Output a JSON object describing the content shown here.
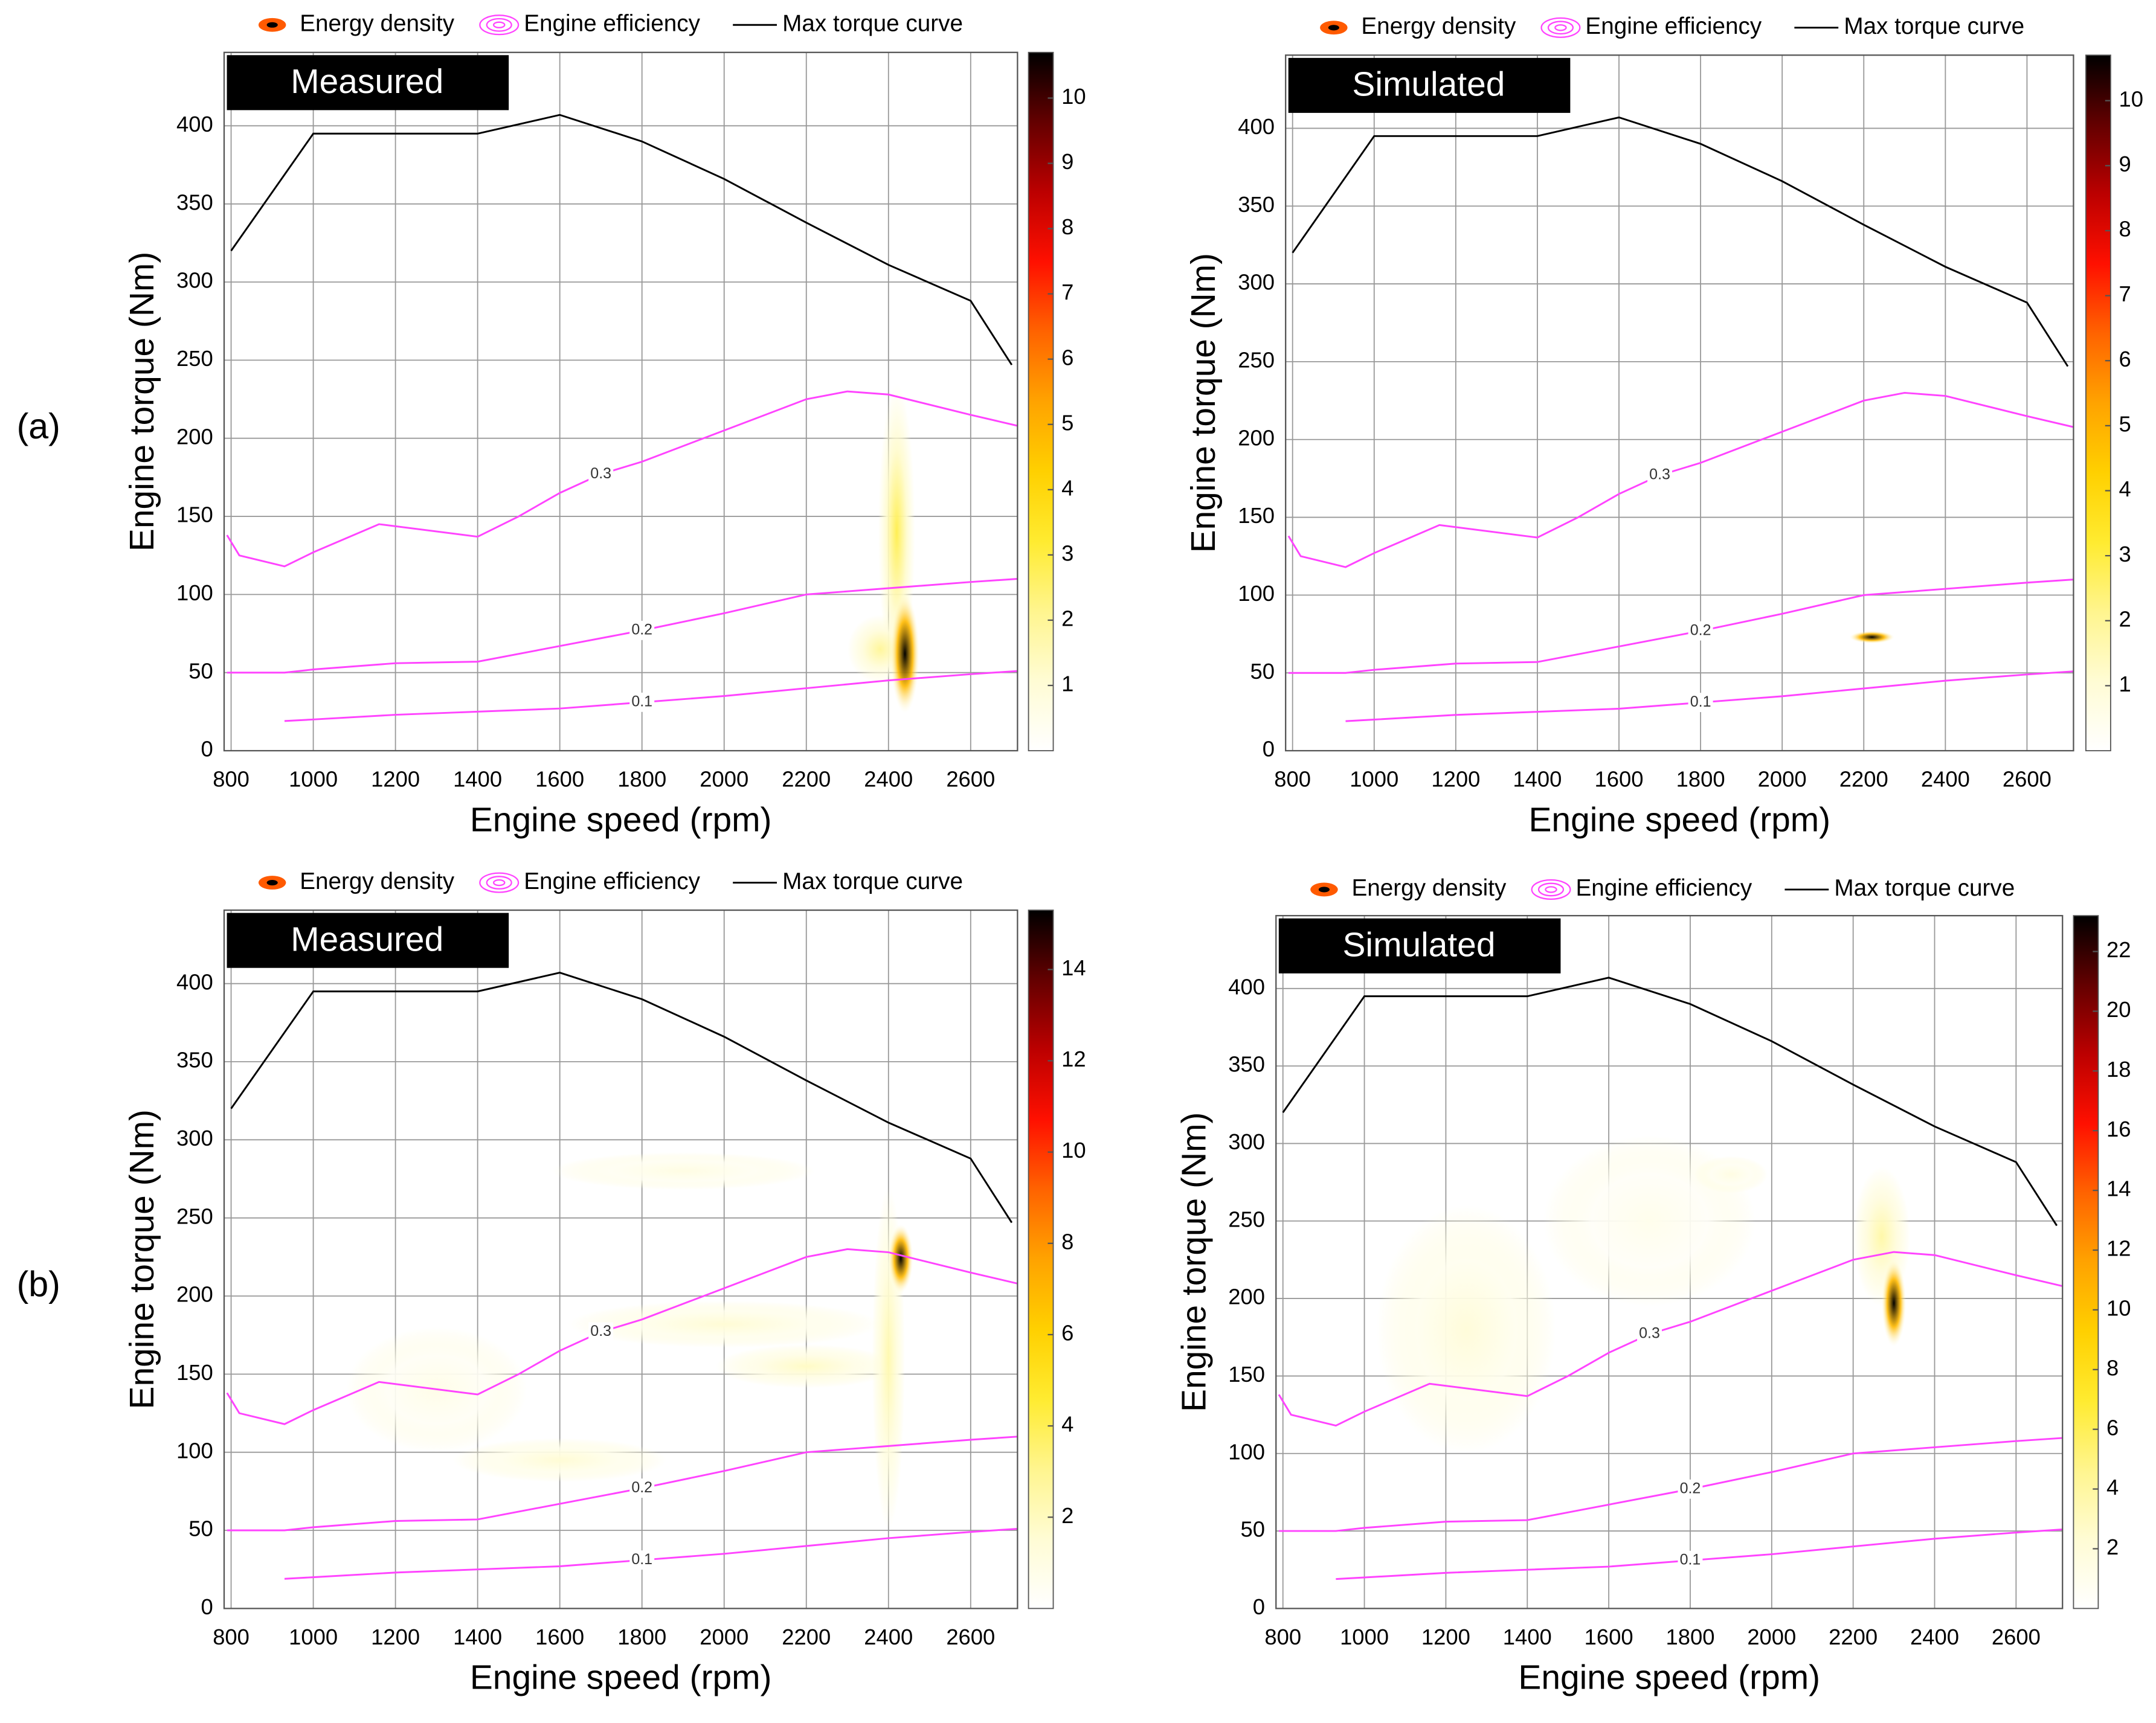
{
  "chart_data": [
    {
      "type": "contour",
      "panel": "(a)",
      "label": "Measured",
      "legend": [
        "Energy density",
        "Engine efficiency",
        "Max torque curve"
      ],
      "xlabel": "Engine speed (rpm)",
      "ylabel": "Engine torque (Nm)",
      "xlim": [
        783,
        2714
      ],
      "ylim": [
        0,
        447
      ],
      "xticks": [
        800,
        1000,
        1200,
        1400,
        1600,
        1800,
        2000,
        2200,
        2400,
        2600
      ],
      "yticks": [
        0,
        50,
        100,
        150,
        200,
        250,
        300,
        350,
        400
      ],
      "grid": true,
      "torque_color": "#000000",
      "efficiency_color": "#ff44ff",
      "max_torque": {
        "x": [
          800,
          1000,
          1200,
          1400,
          1600,
          1800,
          2000,
          2200,
          2400,
          2600,
          2700
        ],
        "y": [
          320,
          395,
          395,
          395,
          407,
          390,
          366,
          338,
          311,
          288,
          247
        ]
      },
      "efficiency": [
        {
          "level": 0.3,
          "x": [
            790,
            820,
            930,
            1000,
            1160,
            1400,
            1500,
            1600,
            1700,
            1800,
            2000,
            2200,
            2300,
            2400,
            2600,
            2714
          ],
          "y": [
            138,
            125,
            118,
            127,
            145,
            137,
            150,
            165,
            177,
            185,
            205,
            225,
            230,
            228,
            215,
            208
          ]
        },
        {
          "level": 0.2,
          "x": [
            790,
            930,
            1000,
            1200,
            1400,
            1600,
            1800,
            2000,
            2200,
            2400,
            2600,
            2714
          ],
          "y": [
            50,
            50,
            52,
            56,
            57,
            67,
            77,
            88,
            100,
            104,
            108,
            110
          ]
        },
        {
          "level": 0.1,
          "x": [
            930,
            1000,
            1200,
            1400,
            1600,
            1800,
            2000,
            2200,
            2400,
            2600,
            2714
          ],
          "y": [
            19,
            20,
            23,
            25,
            27,
            31,
            35,
            40,
            45,
            49,
            51
          ]
        }
      ],
      "energy_density": [
        {
          "x": 2420,
          "y": 140,
          "sx": 45,
          "sy": 95,
          "value": 2.8
        },
        {
          "x": 2380,
          "y": 65,
          "sx": 80,
          "sy": 22,
          "value": 2
        },
        {
          "x": 2440,
          "y": 62,
          "sx": 35,
          "sy": 38,
          "value": 10.7
        }
      ],
      "clim": [
        0,
        10.7
      ],
      "cticks": [
        1,
        2,
        3,
        4,
        5,
        6,
        7,
        8,
        9,
        10
      ]
    },
    {
      "type": "contour",
      "label": "Simulated",
      "legend": [
        "Energy density",
        "Engine efficiency",
        "Max torque curve"
      ],
      "xlabel": "Engine speed (rpm)",
      "ylabel": "Engine torque (Nm)",
      "xlim": [
        783,
        2714
      ],
      "ylim": [
        0,
        447
      ],
      "xticks": [
        800,
        1000,
        1200,
        1400,
        1600,
        1800,
        2000,
        2200,
        2400,
        2600
      ],
      "yticks": [
        0,
        50,
        100,
        150,
        200,
        250,
        300,
        350,
        400
      ],
      "grid": true,
      "torque_color": "#000000",
      "efficiency_color": "#ff44ff",
      "max_torque": {
        "x": [
          800,
          1000,
          1200,
          1400,
          1600,
          1800,
          2000,
          2200,
          2400,
          2600,
          2700
        ],
        "y": [
          320,
          395,
          395,
          395,
          407,
          390,
          366,
          338,
          311,
          288,
          247
        ]
      },
      "efficiency": [
        {
          "level": 0.3,
          "x": [
            790,
            820,
            930,
            1000,
            1160,
            1400,
            1500,
            1600,
            1700,
            1800,
            2000,
            2200,
            2300,
            2400,
            2600,
            2714
          ],
          "y": [
            138,
            125,
            118,
            127,
            145,
            137,
            150,
            165,
            177,
            185,
            205,
            225,
            230,
            228,
            215,
            208
          ]
        },
        {
          "level": 0.2,
          "x": [
            790,
            930,
            1000,
            1200,
            1400,
            1600,
            1800,
            2000,
            2200,
            2400,
            2600,
            2714
          ],
          "y": [
            50,
            50,
            52,
            56,
            57,
            67,
            77,
            88,
            100,
            104,
            108,
            110
          ]
        },
        {
          "level": 0.1,
          "x": [
            930,
            1000,
            1200,
            1400,
            1600,
            1800,
            2000,
            2200,
            2400,
            2600,
            2714
          ],
          "y": [
            19,
            20,
            23,
            25,
            27,
            31,
            35,
            40,
            45,
            49,
            51
          ]
        }
      ],
      "energy_density": [
        {
          "x": 2220,
          "y": 73,
          "sx": 55,
          "sy": 4,
          "value": 10.7
        }
      ],
      "clim": [
        0,
        10.7
      ],
      "cticks": [
        1,
        2,
        3,
        4,
        5,
        6,
        7,
        8,
        9,
        10
      ]
    },
    {
      "type": "contour",
      "panel": "(b)",
      "label": "Measured",
      "legend": [
        "Energy density",
        "Engine efficiency",
        "Max torque curve"
      ],
      "xlabel": "Engine speed (rpm)",
      "ylabel": "Engine torque (Nm)",
      "xlim": [
        783,
        2714
      ],
      "ylim": [
        0,
        447
      ],
      "xticks": [
        800,
        1000,
        1200,
        1400,
        1600,
        1800,
        2000,
        2200,
        2400,
        2600
      ],
      "yticks": [
        0,
        50,
        100,
        150,
        200,
        250,
        300,
        350,
        400
      ],
      "grid": true,
      "torque_color": "#000000",
      "efficiency_color": "#ff44ff",
      "max_torque": {
        "x": [
          800,
          1000,
          1200,
          1400,
          1600,
          1800,
          2000,
          2200,
          2400,
          2600,
          2700
        ],
        "y": [
          320,
          395,
          395,
          395,
          407,
          390,
          366,
          338,
          311,
          288,
          247
        ]
      },
      "efficiency": [
        {
          "level": 0.3,
          "x": [
            790,
            820,
            930,
            1000,
            1160,
            1400,
            1500,
            1600,
            1700,
            1800,
            2000,
            2200,
            2300,
            2400,
            2600,
            2714
          ],
          "y": [
            138,
            125,
            118,
            127,
            145,
            137,
            150,
            165,
            177,
            185,
            205,
            225,
            230,
            228,
            215,
            208
          ]
        },
        {
          "level": 0.2,
          "x": [
            790,
            930,
            1000,
            1200,
            1400,
            1600,
            1800,
            2000,
            2200,
            2400,
            2600,
            2714
          ],
          "y": [
            50,
            50,
            52,
            56,
            57,
            67,
            77,
            88,
            100,
            104,
            108,
            110
          ]
        },
        {
          "level": 0.1,
          "x": [
            930,
            1000,
            1200,
            1400,
            1600,
            1800,
            2000,
            2200,
            2400,
            2600,
            2714
          ],
          "y": [
            19,
            20,
            23,
            25,
            27,
            31,
            35,
            40,
            45,
            49,
            51
          ]
        }
      ],
      "energy_density": [
        {
          "x": 1300,
          "y": 140,
          "sx": 220,
          "sy": 40,
          "value": 0.8
        },
        {
          "x": 1900,
          "y": 280,
          "sx": 320,
          "sy": 12,
          "value": 1
        },
        {
          "x": 2000,
          "y": 182,
          "sx": 380,
          "sy": 15,
          "value": 1.5
        },
        {
          "x": 1600,
          "y": 95,
          "sx": 260,
          "sy": 14,
          "value": 1.5
        },
        {
          "x": 2200,
          "y": 155,
          "sx": 220,
          "sy": 14,
          "value": 2
        },
        {
          "x": 2400,
          "y": 160,
          "sx": 40,
          "sy": 110,
          "value": 2.5
        },
        {
          "x": 2430,
          "y": 224,
          "sx": 30,
          "sy": 22,
          "value": 15.3
        }
      ],
      "clim": [
        0,
        15.3
      ],
      "cticks": [
        2,
        4,
        6,
        8,
        10,
        12,
        14
      ]
    },
    {
      "type": "contour",
      "label": "Simulated",
      "legend": [
        "Energy density",
        "Engine efficiency",
        "Max torque curve"
      ],
      "xlabel": "Engine speed (rpm)",
      "ylabel": "Engine torque (Nm)",
      "xlim": [
        783,
        2714
      ],
      "ylim": [
        0,
        447
      ],
      "xticks": [
        800,
        1000,
        1200,
        1400,
        1600,
        1800,
        2000,
        2200,
        2400,
        2600
      ],
      "yticks": [
        0,
        50,
        100,
        150,
        200,
        250,
        300,
        350,
        400
      ],
      "grid": true,
      "torque_color": "#000000",
      "efficiency_color": "#ff44ff",
      "max_torque": {
        "x": [
          800,
          1000,
          1200,
          1400,
          1600,
          1800,
          2000,
          2200,
          2400,
          2600,
          2700
        ],
        "y": [
          320,
          395,
          395,
          395,
          407,
          390,
          366,
          338,
          311,
          288,
          247
        ]
      },
      "efficiency": [
        {
          "level": 0.3,
          "x": [
            790,
            820,
            930,
            1000,
            1160,
            1400,
            1500,
            1600,
            1700,
            1800,
            2000,
            2200,
            2300,
            2400,
            2600,
            2714
          ],
          "y": [
            138,
            125,
            118,
            127,
            145,
            137,
            150,
            165,
            177,
            185,
            205,
            225,
            230,
            228,
            215,
            208
          ]
        },
        {
          "level": 0.2,
          "x": [
            790,
            930,
            1000,
            1200,
            1400,
            1600,
            1800,
            2000,
            2200,
            2400,
            2600,
            2714
          ],
          "y": [
            50,
            50,
            52,
            56,
            57,
            67,
            77,
            88,
            100,
            104,
            108,
            110
          ]
        },
        {
          "level": 0.1,
          "x": [
            930,
            1000,
            1200,
            1400,
            1600,
            1800,
            2000,
            2200,
            2400,
            2600,
            2714
          ],
          "y": [
            19,
            20,
            23,
            25,
            27,
            31,
            35,
            40,
            45,
            49,
            51
          ]
        }
      ],
      "energy_density": [
        {
          "x": 1250,
          "y": 180,
          "sx": 220,
          "sy": 80,
          "value": 2
        },
        {
          "x": 1700,
          "y": 250,
          "sx": 260,
          "sy": 55,
          "value": 1
        },
        {
          "x": 1900,
          "y": 280,
          "sx": 90,
          "sy": 12,
          "value": 1.5
        },
        {
          "x": 2270,
          "y": 240,
          "sx": 70,
          "sy": 45,
          "value": 4
        },
        {
          "x": 2300,
          "y": 197,
          "sx": 30,
          "sy": 28,
          "value": 23.2
        }
      ],
      "clim": [
        0,
        23.2
      ],
      "cticks": [
        2,
        4,
        6,
        8,
        10,
        12,
        14,
        16,
        18,
        20,
        22
      ]
    }
  ]
}
